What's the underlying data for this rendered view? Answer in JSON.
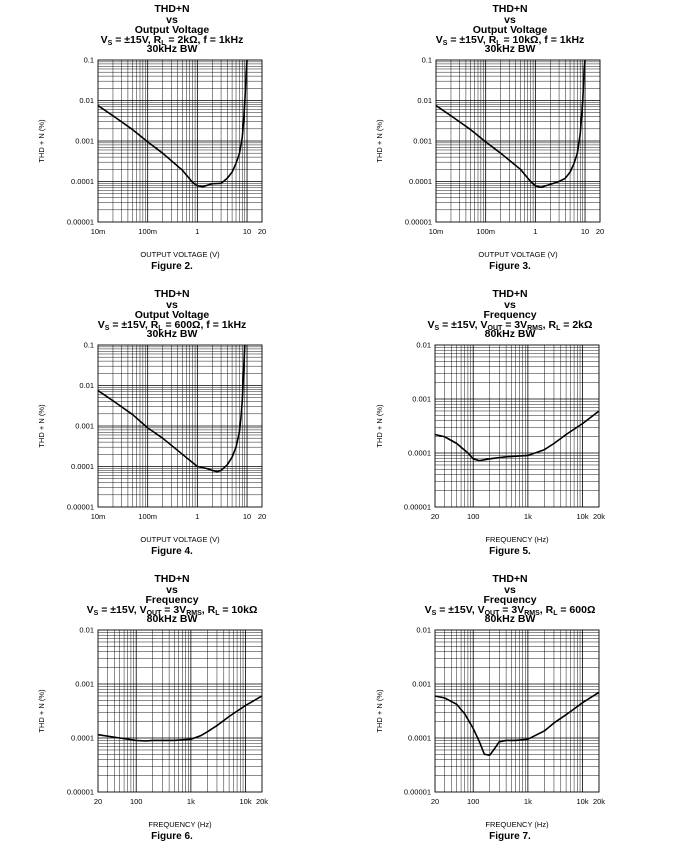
{
  "charts": [
    {
      "id": "fig2",
      "caption": "Figure 2.",
      "title": {
        "l1": "THD+N",
        "l2": "vs",
        "l3": "Output Voltage",
        "cond_a": "V",
        "cond_a_sub": "S",
        "cond_b": " = ±15V, R",
        "cond_b_sub": "L",
        "cond_c": " = 2kΩ, f = 1kHz",
        "cond_d_sub": "",
        "cond_e": "",
        "l5": "30kHz BW"
      },
      "xlabel": "OUTPUT VOLTAGE (V)",
      "ylabel": "THD + N (%)"
    },
    {
      "id": "fig3",
      "caption": "Figure 3.",
      "title": {
        "l1": "THD+N",
        "l2": "vs",
        "l3": "Output Voltage",
        "cond_a": "V",
        "cond_a_sub": "S",
        "cond_b": " = ±15V, R",
        "cond_b_sub": "L",
        "cond_c": " = 10kΩ, f = 1kHz",
        "cond_d_sub": "",
        "cond_e": "",
        "l5": "30kHz BW"
      },
      "xlabel": "OUTPUT VOLTAGE (V)",
      "ylabel": "THD + N (%)"
    },
    {
      "id": "fig4",
      "caption": "Figure 4.",
      "title": {
        "l1": "THD+N",
        "l2": "vs",
        "l3": "Output Voltage",
        "cond_a": "V",
        "cond_a_sub": "S",
        "cond_b": " = ±15V, R",
        "cond_b_sub": "L",
        "cond_c": " = 600Ω, f = 1kHz",
        "cond_d_sub": "",
        "cond_e": "",
        "l5": "30kHz BW"
      },
      "xlabel": "OUTPUT VOLTAGE (V)",
      "ylabel": "THD + N (%)"
    },
    {
      "id": "fig5",
      "caption": "Figure 5.",
      "title": {
        "l1": "THD+N",
        "l2": "vs",
        "l3": "Frequency",
        "cond_a": "V",
        "cond_a_sub": "S",
        "cond_b": " = ±15V, V",
        "cond_b_sub": "OUT",
        "cond_c": " = 3V",
        "cond_d_sub": "RMS",
        "cond_e": ", R",
        "cond_e_sub": "L",
        "cond_f": " = 2kΩ",
        "l5": "80kHz BW"
      },
      "xlabel": "FREQUENCY (Hz)",
      "ylabel": "THD + N (%)"
    },
    {
      "id": "fig6",
      "caption": "Figure 6.",
      "title": {
        "l1": "THD+N",
        "l2": "vs",
        "l3": "Frequency",
        "cond_a": "V",
        "cond_a_sub": "S",
        "cond_b": " = ±15V, V",
        "cond_b_sub": "OUT",
        "cond_c": " = 3V",
        "cond_d_sub": "RMS",
        "cond_e": ", R",
        "cond_e_sub": "L",
        "cond_f": " = 10kΩ",
        "l5": "80kHz BW"
      },
      "xlabel": "FREQUENCY (Hz)",
      "ylabel": "THD + N (%)"
    },
    {
      "id": "fig7",
      "caption": "Figure 7.",
      "title": {
        "l1": "THD+N",
        "l2": "vs",
        "l3": "Frequency",
        "cond_a": "V",
        "cond_a_sub": "S",
        "cond_b": " = ±15V, V",
        "cond_b_sub": "OUT",
        "cond_c": " = 3V",
        "cond_d_sub": "RMS",
        "cond_e": ", R",
        "cond_e_sub": "L",
        "cond_f": " = 600Ω",
        "l5": "80kHz BW"
      },
      "xlabel": "FREQUENCY (Hz)",
      "ylabel": "THD + N (%)"
    }
  ],
  "chart_data": [
    {
      "type": "line",
      "xscale": "log",
      "yscale": "log",
      "xlim": [
        0.01,
        20
      ],
      "ylim": [
        1e-05,
        0.1
      ],
      "xticks": [
        0.01,
        0.1,
        1,
        10,
        20
      ],
      "xtick_labels": [
        "10m",
        "100m",
        "1",
        "10",
        "20"
      ],
      "yticks": [
        0.1,
        0.01,
        0.001,
        0.0001,
        1e-05
      ],
      "ytick_labels": [
        "0.1",
        "0.01",
        "0.001",
        "0.0001",
        "0.00001"
      ],
      "grid": true,
      "x": [
        0.01,
        0.02,
        0.05,
        0.1,
        0.2,
        0.5,
        0.8,
        1,
        1.3,
        2,
        3,
        4,
        5,
        6,
        7,
        8,
        8.5,
        9,
        9.3,
        9.6,
        10
      ],
      "y": [
        0.0075,
        0.0042,
        0.0019,
        0.00095,
        0.0005,
        0.00019,
        9.5e-05,
        7.8e-05,
        7.5e-05,
        8.8e-05,
        9e-05,
        0.00012,
        0.00017,
        0.00028,
        0.00048,
        0.0012,
        0.003,
        0.009,
        0.02,
        0.05,
        0.1
      ]
    },
    {
      "type": "line",
      "xscale": "log",
      "yscale": "log",
      "xlim": [
        0.01,
        20
      ],
      "ylim": [
        1e-05,
        0.1
      ],
      "xticks": [
        0.01,
        0.1,
        1,
        10,
        20
      ],
      "xtick_labels": [
        "10m",
        "100m",
        "1",
        "10",
        "20"
      ],
      "yticks": [
        0.1,
        0.01,
        0.001,
        0.0001,
        1e-05
      ],
      "ytick_labels": [
        "0.1",
        "0.01",
        "0.001",
        "0.0001",
        "0.00001"
      ],
      "grid": true,
      "x": [
        0.01,
        0.02,
        0.05,
        0.1,
        0.2,
        0.5,
        0.8,
        1,
        1.3,
        2,
        3,
        4,
        5,
        6,
        7,
        8,
        8.5,
        9,
        9.3,
        9.6,
        10
      ],
      "y": [
        0.0075,
        0.0042,
        0.0019,
        0.00095,
        0.0005,
        0.0002,
        0.0001,
        7.8e-05,
        7.2e-05,
        8.5e-05,
        0.0001,
        0.00012,
        0.00017,
        0.00028,
        0.0005,
        0.0015,
        0.004,
        0.01,
        0.025,
        0.06,
        0.1
      ]
    },
    {
      "type": "line",
      "xscale": "log",
      "yscale": "log",
      "xlim": [
        0.01,
        20
      ],
      "ylim": [
        1e-05,
        0.1
      ],
      "xticks": [
        0.01,
        0.1,
        1,
        10,
        20
      ],
      "xtick_labels": [
        "10m",
        "100m",
        "1",
        "10",
        "20"
      ],
      "yticks": [
        0.1,
        0.01,
        0.001,
        0.0001,
        1e-05
      ],
      "ytick_labels": [
        "0.1",
        "0.01",
        "0.001",
        "0.0001",
        "0.00001"
      ],
      "grid": true,
      "x": [
        0.01,
        0.02,
        0.05,
        0.1,
        0.2,
        0.5,
        1,
        1.5,
        2,
        2.5,
        3,
        4,
        5,
        6,
        7,
        7.5,
        8,
        8.3,
        8.6,
        9
      ],
      "y": [
        0.0075,
        0.0042,
        0.0019,
        0.0009,
        0.0005,
        0.0002,
        0.0001,
        9e-05,
        8e-05,
        7.5e-05,
        8e-05,
        0.00011,
        0.00017,
        0.0003,
        0.0007,
        0.0015,
        0.004,
        0.01,
        0.03,
        0.1
      ]
    },
    {
      "type": "line",
      "xscale": "log",
      "yscale": "log",
      "xlim": [
        20,
        20000
      ],
      "ylim": [
        1e-05,
        0.01
      ],
      "xticks": [
        20,
        100,
        1000,
        10000,
        20000
      ],
      "xtick_labels": [
        "20",
        "100",
        "1k",
        "10k",
        "20k"
      ],
      "yticks": [
        0.01,
        0.001,
        0.0001,
        1e-05
      ],
      "ytick_labels": [
        "0.01",
        "0.001",
        "0.0001",
        "0.00001"
      ],
      "grid": true,
      "x": [
        20,
        30,
        50,
        80,
        100,
        130,
        200,
        400,
        1000,
        2000,
        3000,
        5000,
        10000,
        20000
      ],
      "y": [
        0.00022,
        0.0002,
        0.00015,
        0.0001,
        7.8e-05,
        7.2e-05,
        7.8e-05,
        8.5e-05,
        9e-05,
        0.000115,
        0.00015,
        0.00022,
        0.00035,
        0.0006
      ]
    },
    {
      "type": "line",
      "xscale": "log",
      "yscale": "log",
      "xlim": [
        20,
        20000
      ],
      "ylim": [
        1e-05,
        0.01
      ],
      "xticks": [
        20,
        100,
        1000,
        10000,
        20000
      ],
      "xtick_labels": [
        "20",
        "100",
        "1k",
        "10k",
        "20k"
      ],
      "yticks": [
        0.01,
        0.001,
        0.0001,
        1e-05
      ],
      "ytick_labels": [
        "0.01",
        "0.001",
        "0.0001",
        "0.00001"
      ],
      "grid": true,
      "x": [
        20,
        50,
        100,
        150,
        200,
        500,
        1000,
        1500,
        2000,
        3000,
        5000,
        10000,
        20000
      ],
      "y": [
        0.000115,
        0.0001,
        9e-05,
        8.8e-05,
        9e-05,
        9e-05,
        9.5e-05,
        0.00011,
        0.00013,
        0.00017,
        0.00025,
        0.0004,
        0.0006
      ]
    },
    {
      "type": "line",
      "xscale": "log",
      "yscale": "log",
      "xlim": [
        20,
        20000
      ],
      "ylim": [
        1e-05,
        0.01
      ],
      "xticks": [
        20,
        100,
        1000,
        10000,
        20000
      ],
      "xtick_labels": [
        "20",
        "100",
        "1k",
        "10k",
        "20k"
      ],
      "yticks": [
        0.01,
        0.001,
        0.0001,
        1e-05
      ],
      "ytick_labels": [
        "0.01",
        "0.001",
        "0.0001",
        "0.00001"
      ],
      "grid": true,
      "x": [
        20,
        30,
        50,
        70,
        100,
        130,
        160,
        200,
        250,
        300,
        400,
        600,
        1000,
        2000,
        3000,
        5000,
        10000,
        20000
      ],
      "y": [
        0.0006,
        0.00055,
        0.00042,
        0.00028,
        0.00015,
        8.5e-05,
        5e-05,
        4.8e-05,
        6.5e-05,
        8.5e-05,
        9e-05,
        9e-05,
        9.5e-05,
        0.000135,
        0.00019,
        0.00027,
        0.00045,
        0.0007
      ]
    }
  ]
}
